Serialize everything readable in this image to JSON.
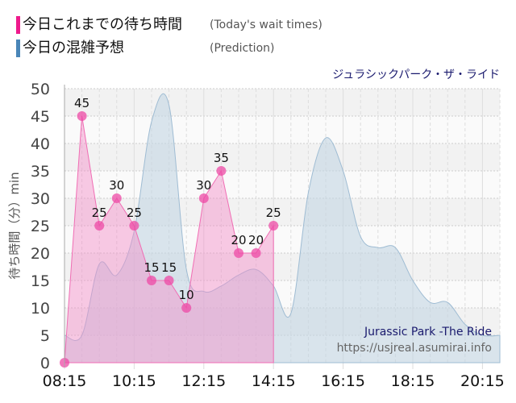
{
  "legend": [
    {
      "label": "今日これまでの待ち時間",
      "sub": "(Today's wait times)",
      "color": "#ee1a8c"
    },
    {
      "label": "今日の混雑予想",
      "sub": "(Prediction)",
      "color": "#4a86b8"
    }
  ],
  "attraction_jp": "ジュラシックパーク・ザ・ライド",
  "attraction_en": "Jurassic Park -The Ride",
  "source": "https://usjreal.asumirai.info",
  "chart_data": {
    "type": "area",
    "ylabel": "待ち時間（分）min",
    "ylim": [
      0,
      50
    ],
    "yticks": [
      0,
      5,
      10,
      15,
      20,
      25,
      30,
      35,
      40,
      45,
      50
    ],
    "xlim": [
      "08:15",
      "20:45"
    ],
    "xticks": [
      "08:15",
      "10:15",
      "12:15",
      "14:15",
      "16:15",
      "18:15",
      "20:15"
    ],
    "grid": true,
    "legend_position": "top-left",
    "series": [
      {
        "name": "今日これまでの待ち時間",
        "color": "#f06eb4",
        "x": [
          "08:15",
          "08:45",
          "09:15",
          "09:45",
          "10:15",
          "10:45",
          "11:15",
          "11:45",
          "12:15",
          "12:45",
          "13:15",
          "13:45",
          "14:15"
        ],
        "values": [
          0,
          45,
          25,
          30,
          25,
          15,
          15,
          10,
          30,
          35,
          20,
          20,
          25
        ]
      },
      {
        "name": "今日の混雑予想",
        "color": "#9fbcd3",
        "x": [
          "08:15",
          "08:45",
          "09:15",
          "09:45",
          "10:15",
          "10:45",
          "11:15",
          "11:45",
          "12:15",
          "12:45",
          "13:15",
          "13:45",
          "14:15",
          "14:45",
          "15:15",
          "15:45",
          "16:15",
          "16:45",
          "17:15",
          "17:45",
          "18:15",
          "18:45",
          "19:15",
          "19:45",
          "20:15",
          "20:45"
        ],
        "values": [
          5,
          5,
          18,
          16,
          24,
          44,
          47,
          17,
          13,
          14,
          16,
          17,
          14,
          9,
          31,
          41,
          35,
          23,
          21,
          21,
          15,
          11,
          11,
          7,
          5,
          5
        ]
      }
    ],
    "data_labels": [
      "",
      "45",
      "25",
      "30",
      "25",
      "15",
      "15",
      "10",
      "30",
      "35",
      "20",
      "20",
      "25"
    ]
  }
}
